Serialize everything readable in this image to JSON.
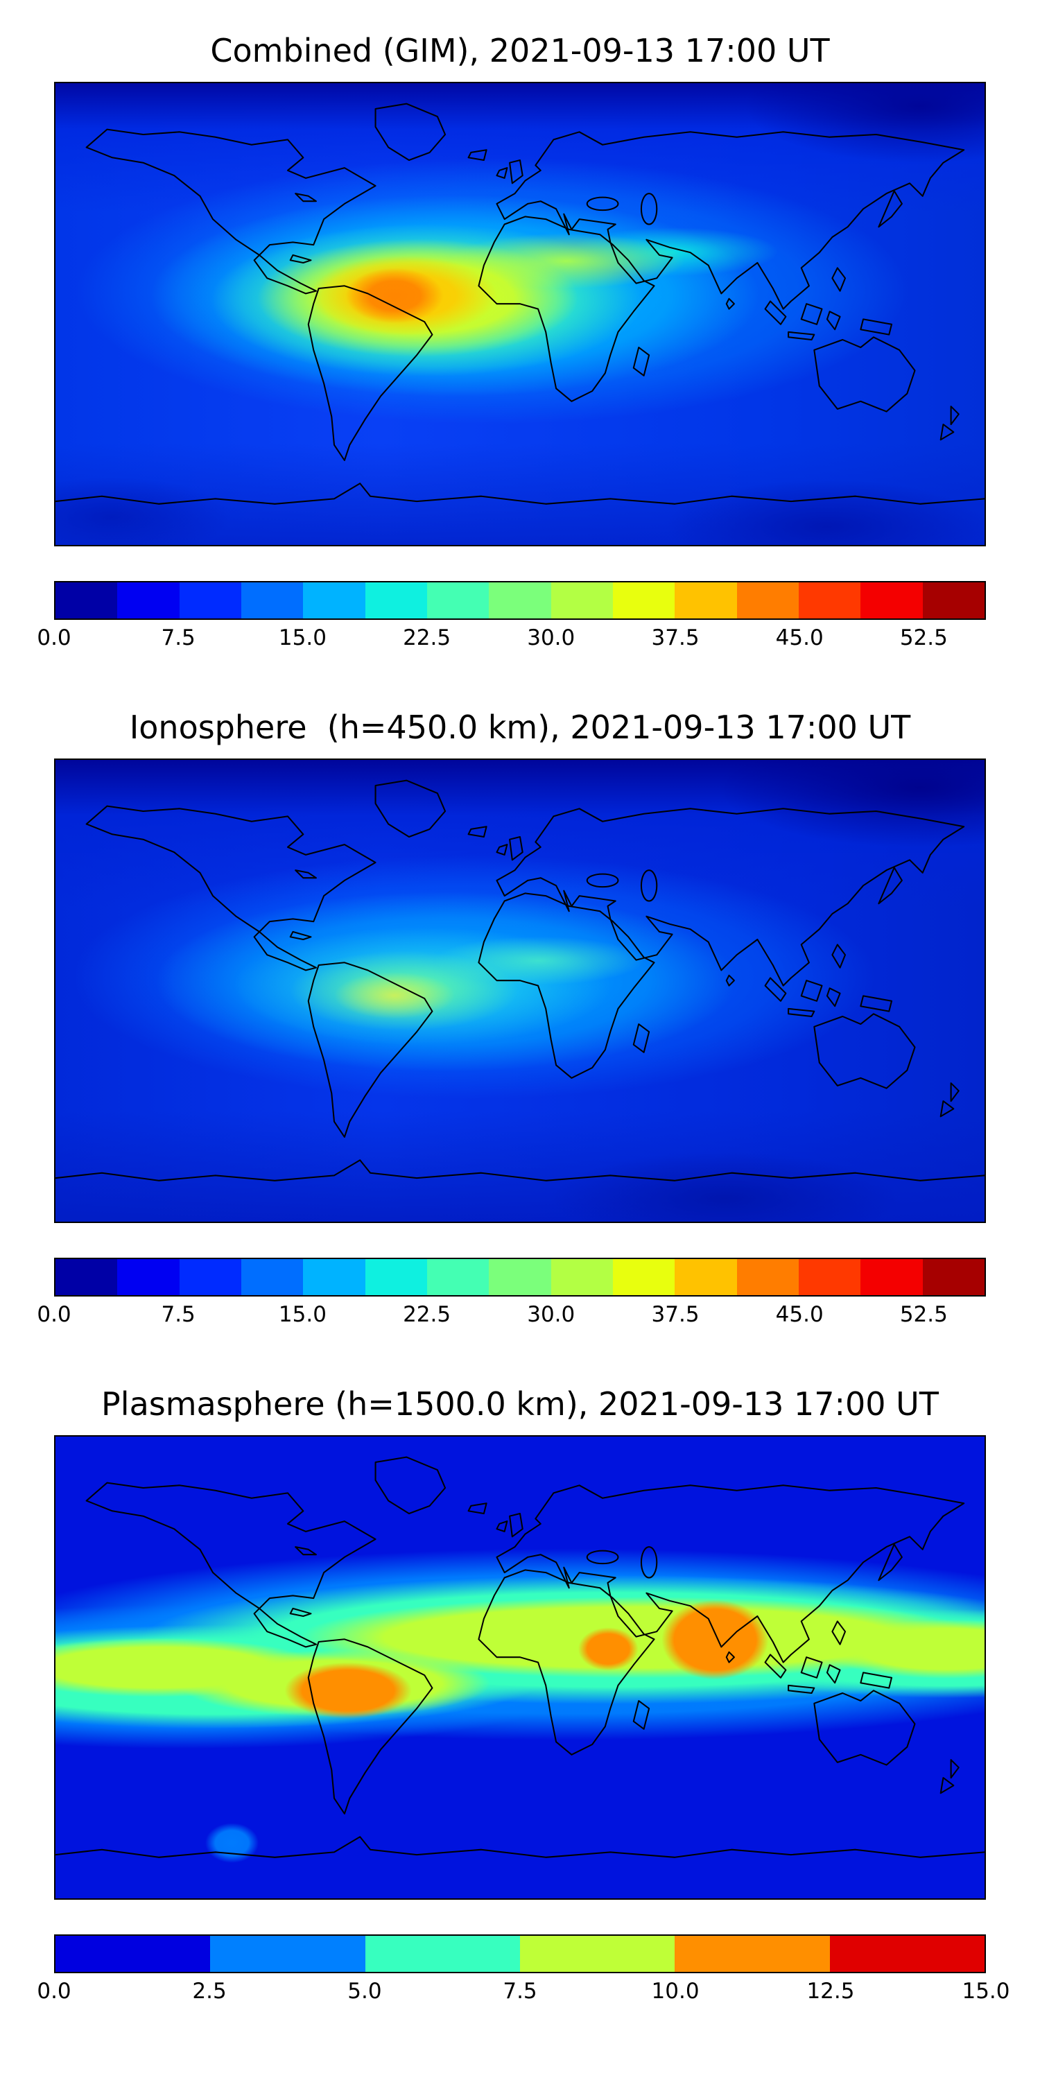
{
  "figure": {
    "panels": [
      {
        "title": "Combined (GIM), 2021-09-13 17:00 UT",
        "map_background": "radial-gradient(ellipse 7% 8% at 36.5% 46%, rgba(255,130,0,0.95) 0%, rgba(255,130,0,0.9) 40%, rgba(255,130,0,0) 75%), radial-gradient(ellipse 14% 12% at 37.5% 46%, rgba(255,200,0,0.95) 0%, rgba(255,200,0,0.85) 40%, rgba(255,200,0,0) 72%), radial-gradient(ellipse 23% 17% at 39% 46.5%, rgba(232,255,14,0.95) 0%, rgba(232,255,14,0.8) 45%, rgba(232,255,14,0) 75%), radial-gradient(ellipse 17% 8% at 55% 38.5%, rgba(179,255,68,0.9) 0%, rgba(179,255,68,0) 75%), radial-gradient(ellipse 31% 22% at 40% 47%, rgba(68,255,179,0.95) 0%, rgba(68,255,179,0.75) 45%, rgba(68,255,179,0) 75%), radial-gradient(ellipse 15% 7% at 66.5% 36.5%, rgba(15,240,224,0.85) 0%, rgba(15,240,224,0) 75%), radial-gradient(ellipse 42% 28% at 43% 46%, rgba(0,190,255,0.95) 0%, rgba(0,190,255,0.6) 55%, rgba(0,170,255,0) 78%), radial-gradient(ellipse 56% 36% at 47% 45%, rgba(0,130,255,0.9) 0%, rgba(0,120,255,0.5) 60%, rgba(0,110,255,0) 80%), radial-gradient(ellipse 26% 17% at 93% 5%, rgba(0,5,150,0.95) 0%, rgba(0,5,150,0) 72%), radial-gradient(ellipse 24% 14% at 83% 96%, rgba(0,20,175,0.85) 0%, rgba(0,20,175,0) 72%), radial-gradient(ellipse 18% 12% at 6% 94%, rgba(0,25,185,0.8) 0%, rgba(0,25,185,0) 72%), linear-gradient(180deg, rgba(0,8,165,1) 0%, rgba(0,40,225,0.85) 10%, rgba(0,60,240,0) 28%), linear-gradient(0deg, rgba(1,35,205,0.9) 0%, rgba(1,45,215,0) 22%), linear-gradient(90deg, #0136e8 0%, #0940f5 35%, #0136e8 75%, #012fd8 100%)",
        "colorbar": {
          "segments": [
            "#0000a6",
            "#0000f2",
            "#002bff",
            "#006eff",
            "#00b3ff",
            "#0ff0e0",
            "#44ffb3",
            "#7bff7b",
            "#b3ff44",
            "#e8ff0e",
            "#ffc200",
            "#ff7d00",
            "#ff3900",
            "#f40000",
            "#a60000"
          ],
          "ticks": [
            {
              "label": "0.0",
              "pos": 0.0
            },
            {
              "label": "7.5",
              "pos": 0.1333
            },
            {
              "label": "15.0",
              "pos": 0.2667
            },
            {
              "label": "22.5",
              "pos": 0.4
            },
            {
              "label": "30.0",
              "pos": 0.5333
            },
            {
              "label": "37.5",
              "pos": 0.6667
            },
            {
              "label": "45.0",
              "pos": 0.8
            },
            {
              "label": "52.5",
              "pos": 0.9333
            }
          ]
        }
      },
      {
        "title": "Ionosphere  (h=450.0 km), 2021-09-13 17:00 UT",
        "map_background": "radial-gradient(ellipse 9% 7% at 36.5% 51%, rgba(205,240,90,0.95) 0%, rgba(205,240,90,0) 72%), radial-gradient(ellipse 17% 12% at 37.5% 50%, rgba(110,250,150,0.92) 0%, rgba(110,250,150,0) 72%), radial-gradient(ellipse 15% 7% at 52% 43.5%, rgba(70,235,200,0.85) 0%, rgba(70,235,200,0) 75%), radial-gradient(ellipse 27% 17% at 39.5% 49%, rgba(45,225,230,0.9) 0%, rgba(45,225,230,0) 75%), radial-gradient(ellipse 40% 25% at 42% 48%, rgba(0,175,255,0.9) 0%, rgba(0,165,255,0.55) 55%, rgba(0,150,255,0) 78%), radial-gradient(ellipse 54% 33% at 45% 47%, rgba(0,115,255,0.85) 0%, rgba(0,100,255,0.45) 60%, rgba(0,90,255,0) 80%), radial-gradient(ellipse 30% 18% at 93% 6%, rgba(0,2,140,0.95) 0%, rgba(0,2,140,0) 72%), radial-gradient(ellipse 26% 14% at 72% 95%, rgba(0,18,165,0.75) 0%, rgba(0,18,165,0) 72%), linear-gradient(180deg, rgba(0,6,155,1) 0%, rgba(0,35,215,0.85) 12%, rgba(0,55,235,0) 32%), linear-gradient(0deg, rgba(1,28,195,0.9) 0%, rgba(1,40,205,0) 24%), linear-gradient(90deg, #0129da 0%, #0535ea 35%, #0129da 80%, #0124cc 100%)",
        "colorbar": {
          "segments": [
            "#0000a6",
            "#0000f2",
            "#002bff",
            "#006eff",
            "#00b3ff",
            "#0ff0e0",
            "#44ffb3",
            "#7bff7b",
            "#b3ff44",
            "#e8ff0e",
            "#ffc200",
            "#ff7d00",
            "#ff3900",
            "#f40000",
            "#a60000"
          ],
          "ticks": [
            {
              "label": "0.0",
              "pos": 0.0
            },
            {
              "label": "7.5",
              "pos": 0.1333
            },
            {
              "label": "15.0",
              "pos": 0.2667
            },
            {
              "label": "22.5",
              "pos": 0.4
            },
            {
              "label": "30.0",
              "pos": 0.5333
            },
            {
              "label": "37.5",
              "pos": 0.6667
            },
            {
              "label": "45.0",
              "pos": 0.8
            },
            {
              "label": "52.5",
              "pos": 0.9333
            }
          ]
        }
      },
      {
        "title": "Plasmasphere (h=1500.0 km), 2021-09-13 17:00 UT",
        "map_background": "radial-gradient(ellipse 8% 12% at 71% 44%, #ff8f00 0%, #ff8f00 55%, rgba(255,143,0,0) 72%), radial-gradient(ellipse 4.5% 6.5% at 59.5% 46%, #ff8f00 0%, #ff8f00 50%, rgba(255,143,0,0) 72%), radial-gradient(ellipse 9.5% 8.5% at 31.5% 55%, #ff8f00 0%, #ff8f00 52%, rgba(255,143,0,0) 72%), radial-gradient(ellipse 4% 6% at 19% 88%, rgba(0,128,255,0.95) 0%, rgba(0,128,255,0.9) 45%, rgba(0,128,255,0) 72%), radial-gradient(ellipse 46% 11% at 63% 43.5%, #bfff37 0%, #bfff37 60%, rgba(191,255,55,0) 80%), radial-gradient(ellipse 22% 8% at 11% 50%, #bfff37 0%, #bfff37 55%, rgba(191,255,55,0) 80%), radial-gradient(ellipse 21% 9% at 30% 53.5%, #bfff37 0%, #bfff37 55%, rgba(191,255,55,0) 80%), radial-gradient(ellipse 17% 8% at 96% 46%, #bfff37 0%, #bfff37 55%, rgba(191,255,55,0) 80%), radial-gradient(ellipse 62% 17% at 60% 44%, #37ffbf 0%, #37ffbf 60%, rgba(55,255,191,0) 82%), radial-gradient(ellipse 45% 14% at 17% 52%, #37ffbf 0%, #37ffbf 58%, rgba(55,255,191,0) 80%), radial-gradient(ellipse 34% 12% at 96% 47%, #37ffbf 0%, #37ffbf 58%, rgba(55,255,191,0) 80%), radial-gradient(ellipse 78% 25% at 55% 45%, rgba(0,128,255,0.98) 0%, rgba(0,128,255,0.95) 60%, rgba(0,128,255,0) 83%), radial-gradient(ellipse 55% 19% at 14% 52%, rgba(0,128,255,0.98) 0%, rgba(0,128,255,0.9) 58%, rgba(0,128,255,0) 82%), linear-gradient(180deg, #0013de 0%, #0013de 100%)",
        "colorbar": {
          "segments": [
            "#0000e0",
            "#0080ff",
            "#37ffbf",
            "#bfff37",
            "#ff8f00",
            "#e00000"
          ],
          "ticks": [
            {
              "label": "0.0",
              "pos": 0.0
            },
            {
              "label": "2.5",
              "pos": 0.1667
            },
            {
              "label": "5.0",
              "pos": 0.3333
            },
            {
              "label": "7.5",
              "pos": 0.5
            },
            {
              "label": "10.0",
              "pos": 0.6667
            },
            {
              "label": "12.5",
              "pos": 0.8333
            },
            {
              "label": "15.0",
              "pos": 1.0
            }
          ]
        }
      }
    ]
  },
  "chart_data": [
    {
      "type": "heatmap",
      "title": "Combined (GIM), 2021-09-13 17:00 UT",
      "datetime_label": "2021-09-13 17:00 UT",
      "projection": "global equirectangular world map, lon -180..180, lat -90..90, coastlines in black",
      "colormap": "jet",
      "n_color_levels": 15,
      "colorbar_ticks": [
        0.0,
        7.5,
        15.0,
        22.5,
        30.0,
        37.5,
        45.0,
        52.5
      ],
      "colorbar_range": [
        0,
        56.25
      ],
      "legend_position": "horizontal colorbar below map",
      "features": [
        {
          "region": "peak (orange core) over northern South America / western Atlantic, lon -65..-40, lat -5..10",
          "value_approx": "37-41"
        },
        {
          "region": "yellow/yellow-green halo around peak extending over Brazil and tropical Atlantic",
          "value_approx": "26-34"
        },
        {
          "region": "elevated green/cyan tongue across equatorial Africa toward India",
          "value_approx": "15-26"
        },
        {
          "region": "mid-ocean blue background",
          "value_approx": "7-15"
        },
        {
          "region": "dark blue high latitudes and northeast Asia corner",
          "value_approx": "0-7.5"
        }
      ]
    },
    {
      "type": "heatmap",
      "title": "Ionosphere  (h=450.0 km), 2021-09-13 17:00 UT",
      "datetime_label": "2021-09-13 17:00 UT",
      "projection": "global equirectangular world map, lon -180..180, lat -90..90, coastlines in black",
      "colormap": "jet",
      "n_color_levels": 15,
      "colorbar_ticks": [
        0.0,
        7.5,
        15.0,
        22.5,
        30.0,
        37.5,
        45.0,
        52.5
      ],
      "colorbar_range": [
        0,
        56.25
      ],
      "legend_position": "horizontal colorbar below map",
      "features": [
        {
          "region": "peak (yellow-green) over southeastern South America / south Atlantic, lon -60..-35, lat -15..0",
          "value_approx": "26-30"
        },
        {
          "region": "green/cyan region over tropical South America, Atlantic and equatorial Africa",
          "value_approx": "15-24"
        },
        {
          "region": "azure mid-latitude background",
          "value_approx": "7-15"
        },
        {
          "region": "dark blue high latitudes and northeast quadrant",
          "value_approx": "0-7.5"
        }
      ]
    },
    {
      "type": "heatmap",
      "title": "Plasmasphere (h=1500.0 km), 2021-09-13 17:00 UT",
      "datetime_label": "2021-09-13 17:00 UT",
      "projection": "global equirectangular world map, lon -180..180, lat -90..90, coastlines in black",
      "colormap": "jet",
      "n_color_levels": 6,
      "colorbar_ticks": [
        0.0,
        2.5,
        5.0,
        7.5,
        10.0,
        12.5,
        15.0
      ],
      "colorbar_range": [
        0,
        15
      ],
      "legend_position": "horizontal colorbar below map",
      "features": [
        {
          "region": "orange maximum over Arabian Sea / India, lon 60..85, lat 0..20",
          "value_approx": "10-12.5"
        },
        {
          "region": "orange maximum over Brazil / tropical Atlantic, lon -70..-40, lat -15..0",
          "value_approx": "10-12.5"
        },
        {
          "region": "small orange spot over eastern Africa, lon 33..40, lat 0..10",
          "value_approx": "10-12.5"
        },
        {
          "region": "yellow-green band along (geomagnetic) equator across all longitudes",
          "value_approx": "7.5-10"
        },
        {
          "region": "cyan band flanking the equatorial band",
          "value_approx": "5-7.5"
        },
        {
          "region": "azure mid-latitude band, plus small azure spot in south Pacific",
          "value_approx": "2.5-5"
        },
        {
          "region": "blue high-latitude background top and bottom",
          "value_approx": "0-2.5"
        }
      ]
    }
  ]
}
